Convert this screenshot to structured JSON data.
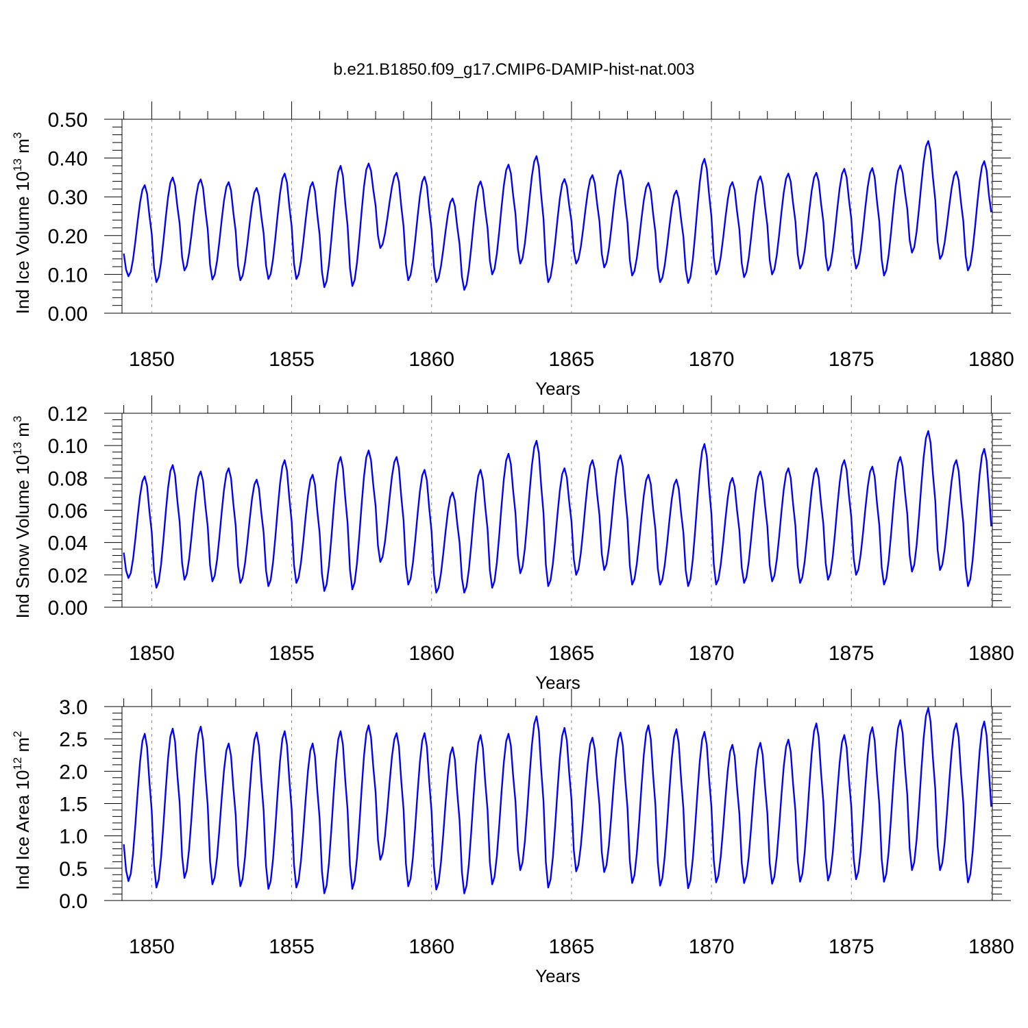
{
  "figure": {
    "title": "b.e21.B1850.f09_g17.CMIP6-DAMIP-hist-nat.003"
  },
  "chart_data": [
    {
      "type": "line",
      "xlabel": "Years",
      "ylabel": "Ind Ice Volume",
      "ylabel_unit": "10",
      "ylabel_unit_exp": "13",
      "ylabel_unit_tail": " m",
      "ylabel_unit_tail_exp": "3",
      "xlim": [
        1849.1,
        1880.0
      ],
      "ylim": [
        0,
        0.5
      ],
      "xticks": [
        "1850",
        "1855",
        "1860",
        "1865",
        "1870",
        "1875",
        "1880"
      ],
      "yticks": [
        "0.00",
        "0.10",
        "0.20",
        "0.30",
        "0.40",
        "0.50"
      ],
      "grid": "dashed vertical at major x ticks",
      "line_color": "#0000ff",
      "x_start": 1849.0,
      "x_step": 0.083333,
      "peaks_yearly": [
        0.33,
        0.35,
        0.345,
        0.338,
        0.323,
        0.36,
        0.338,
        0.38,
        0.386,
        0.362,
        0.352,
        0.296,
        0.34,
        0.383,
        0.405,
        0.346,
        0.356,
        0.368,
        0.336,
        0.316,
        0.398,
        0.338,
        0.353,
        0.36,
        0.362,
        0.372,
        0.374,
        0.381,
        0.444,
        0.365,
        0.392
      ],
      "troughs_yearly": [
        0.095,
        0.08,
        0.11,
        0.087,
        0.085,
        0.088,
        0.088,
        0.067,
        0.07,
        0.168,
        0.085,
        0.08,
        0.06,
        0.1,
        0.128,
        0.08,
        0.128,
        0.118,
        0.097,
        0.08,
        0.078,
        0.1,
        0.093,
        0.1,
        0.115,
        0.11,
        0.115,
        0.097,
        0.156,
        0.14,
        0.11
      ],
      "end_value": 0.26
    },
    {
      "type": "line",
      "xlabel": "Years",
      "ylabel": "Ind Snow Volume",
      "ylabel_unit": "10",
      "ylabel_unit_exp": "13",
      "ylabel_unit_tail": " m",
      "ylabel_unit_tail_exp": "3",
      "xlim": [
        1849.1,
        1880.0
      ],
      "ylim": [
        0,
        0.12
      ],
      "xticks": [
        "1850",
        "1855",
        "1860",
        "1865",
        "1870",
        "1875",
        "1880"
      ],
      "yticks": [
        "0.00",
        "0.02",
        "0.04",
        "0.06",
        "0.08",
        "0.10",
        "0.12"
      ],
      "grid": "dashed vertical at major x ticks",
      "line_color": "#0000ff",
      "x_start": 1849.0,
      "x_step": 0.083333,
      "peaks_yearly": [
        0.081,
        0.088,
        0.084,
        0.086,
        0.079,
        0.091,
        0.082,
        0.093,
        0.097,
        0.093,
        0.085,
        0.071,
        0.085,
        0.095,
        0.103,
        0.086,
        0.091,
        0.094,
        0.082,
        0.079,
        0.101,
        0.08,
        0.084,
        0.086,
        0.086,
        0.091,
        0.087,
        0.093,
        0.109,
        0.091,
        0.098
      ],
      "troughs_yearly": [
        0.018,
        0.012,
        0.017,
        0.016,
        0.015,
        0.013,
        0.015,
        0.01,
        0.011,
        0.028,
        0.014,
        0.009,
        0.009,
        0.012,
        0.021,
        0.013,
        0.02,
        0.023,
        0.014,
        0.014,
        0.013,
        0.014,
        0.015,
        0.016,
        0.015,
        0.017,
        0.02,
        0.014,
        0.022,
        0.023,
        0.013
      ],
      "end_value": 0.05
    },
    {
      "type": "line",
      "xlabel": "Years",
      "ylabel": "Ind Ice Area",
      "ylabel_unit": "10",
      "ylabel_unit_exp": "12",
      "ylabel_unit_tail": " m",
      "ylabel_unit_tail_exp": "2",
      "xlim": [
        1849.1,
        1880.0
      ],
      "ylim": [
        0,
        3.0
      ],
      "xticks": [
        "1850",
        "1855",
        "1860",
        "1865",
        "1870",
        "1875",
        "1880"
      ],
      "yticks": [
        "0.0",
        "0.5",
        "1.0",
        "1.5",
        "2.0",
        "2.5",
        "3.0"
      ],
      "grid": "dashed vertical at major x ticks",
      "line_color": "#0000ff",
      "x_start": 1849.0,
      "x_step": 0.083333,
      "peaks_yearly": [
        2.58,
        2.66,
        2.69,
        2.43,
        2.6,
        2.62,
        2.43,
        2.62,
        2.71,
        2.59,
        2.59,
        2.37,
        2.56,
        2.58,
        2.85,
        2.67,
        2.52,
        2.6,
        2.71,
        2.65,
        2.61,
        2.41,
        2.44,
        2.49,
        2.74,
        2.56,
        2.68,
        2.79,
        2.98,
        2.74,
        2.77
      ],
      "troughs_yearly": [
        0.3,
        0.2,
        0.35,
        0.25,
        0.22,
        0.18,
        0.2,
        0.11,
        0.18,
        0.63,
        0.22,
        0.17,
        0.11,
        0.25,
        0.47,
        0.2,
        0.45,
        0.44,
        0.27,
        0.23,
        0.19,
        0.28,
        0.27,
        0.26,
        0.29,
        0.31,
        0.33,
        0.29,
        0.47,
        0.47,
        0.28
      ],
      "end_value": 1.45
    }
  ]
}
